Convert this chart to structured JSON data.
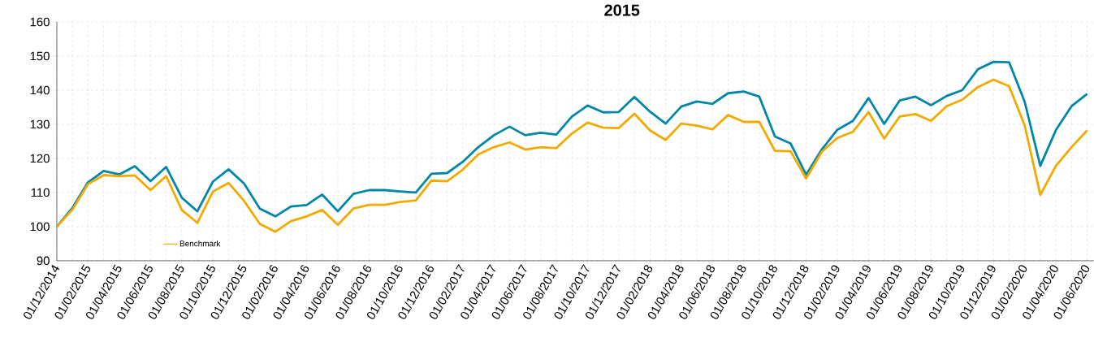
{
  "chart_data": {
    "type": "line",
    "title": "2015",
    "categories": [
      "01/12/2014",
      null,
      "01/02/2015",
      null,
      "01/04/2015",
      null,
      "01/06/2015",
      null,
      "01/08/2015",
      null,
      "01/10/2015",
      null,
      "01/12/2015",
      null,
      "01/02/2016",
      null,
      "01/04/2016",
      null,
      "01/06/2016",
      null,
      "01/08/2016",
      null,
      "01/10/2016",
      null,
      "01/12/2016",
      null,
      "01/02/2017",
      null,
      "01/04/2017",
      null,
      "01/06/2017",
      null,
      "01/08/2017",
      null,
      "01/10/2017",
      null,
      "01/12/2017",
      null,
      "01/02/2018",
      null,
      "01/04/2018",
      null,
      "01/06/2018",
      null,
      "01/08/2018",
      null,
      "01/10/2018",
      null,
      "01/12/2018",
      null,
      "01/02/2019",
      null,
      "01/04/2019",
      null,
      "01/06/2019",
      null,
      "01/08/2019",
      null,
      "01/10/2019",
      null,
      "01/12/2019",
      null,
      "01/02/2020",
      null,
      "01/04/2020",
      null,
      "01/06/2020"
    ],
    "series": [
      {
        "color": "#0087a8",
        "values": [
          100,
          105.5,
          113,
          116.3,
          115.3,
          117.7,
          113.3,
          117.5,
          108.5,
          104.5,
          113.2,
          116.8,
          112.6,
          105.3,
          103,
          105.9,
          106.3,
          109.4,
          104.5,
          109.6,
          110.7,
          110.7,
          110.3,
          110,
          115.5,
          115.7,
          119,
          123.3,
          126.8,
          129.3,
          126.8,
          127.5,
          127,
          132.3,
          135.5,
          133.5,
          133.6,
          138,
          133.7,
          130.2,
          135.2,
          136.7,
          136,
          139.1,
          139.6,
          138.1,
          126.4,
          124.4,
          115.2,
          122.6,
          128.4,
          131,
          137.7,
          130.1,
          137,
          138.1,
          135.6,
          138.3,
          140,
          146.1,
          148.3,
          148.2,
          136.6,
          117.8,
          128.3,
          135.3,
          138.9
        ]
      },
      {
        "name": "Benchmark",
        "color": "#f2a900",
        "values": [
          100,
          105,
          112.5,
          115.1,
          114.8,
          115,
          110.7,
          114.8,
          104.9,
          101.1,
          110.3,
          112.8,
          107.5,
          100.8,
          98.5,
          101.6,
          103,
          104.9,
          100.5,
          105.3,
          106.4,
          106.4,
          107.2,
          107.7,
          113.5,
          113.3,
          116.7,
          121.2,
          123.3,
          124.7,
          122.6,
          123.3,
          123,
          127.3,
          130.5,
          129,
          128.9,
          133.1,
          128.2,
          125.4,
          130.2,
          129.6,
          128.5,
          132.7,
          130.7,
          130.7,
          122.2,
          122.1,
          114.1,
          121.9,
          126,
          127.8,
          133.6,
          125.8,
          132.3,
          133,
          131,
          135.3,
          137.2,
          140.9,
          143.1,
          141.2,
          129.7,
          109.3,
          117.8,
          123.3,
          128.2
        ]
      }
    ],
    "ylim": [
      90,
      160
    ],
    "yticks": [
      90,
      100,
      110,
      120,
      130,
      140,
      150,
      160
    ],
    "grid": true,
    "legend": "bottom left",
    "marker": "none",
    "line_style": "solid"
  }
}
